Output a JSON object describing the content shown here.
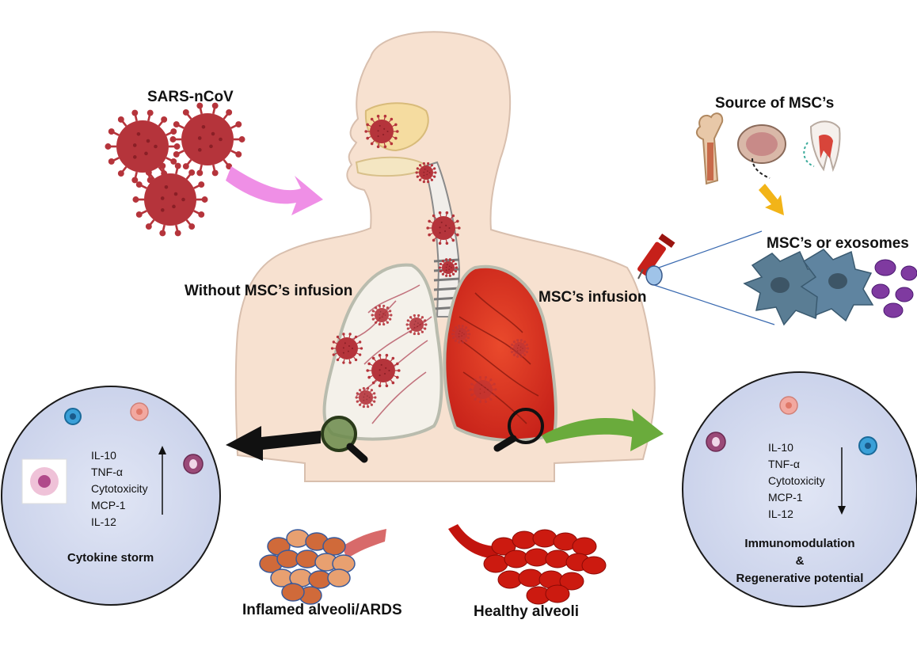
{
  "labels": {
    "virus": "SARS-nCoV",
    "source": "Source of MSC’s",
    "msc_exosomes": "MSC’s or exosomes",
    "without_infusion": "Without MSC’s infusion",
    "with_infusion": "MSC’s infusion",
    "inflamed": "Inflamed alveoli/ARDS",
    "healthy": "Healthy alveoli"
  },
  "left_panel": {
    "markers": [
      "IL-10",
      "TNF-α",
      "Cytotoxicity",
      "MCP-1",
      "IL-12"
    ],
    "trend": "up",
    "caption": "Cytokine storm"
  },
  "right_panel": {
    "markers": [
      "IL-10",
      "TNF-α",
      "Cytotoxicity",
      "MCP-1",
      "IL-12"
    ],
    "trend": "down",
    "caption_line1": "Immunomodulation",
    "caption_line2": "&",
    "caption_line3": "Regenerative potential"
  },
  "colors": {
    "virus": "#b5343b",
    "skin": "#f7e0cf",
    "inflamed_lung": "#f4f1ea",
    "healthy_lung": "#d8301f",
    "panel_fill": "#d5dbef",
    "pink_arrow": "#ef8fe6",
    "green_arrow": "#6aab3c",
    "black_arrow": "#111111",
    "msc_cell": "#5a7d94",
    "exosome": "#7f3aa0",
    "yellow_arrow": "#f2b418"
  }
}
